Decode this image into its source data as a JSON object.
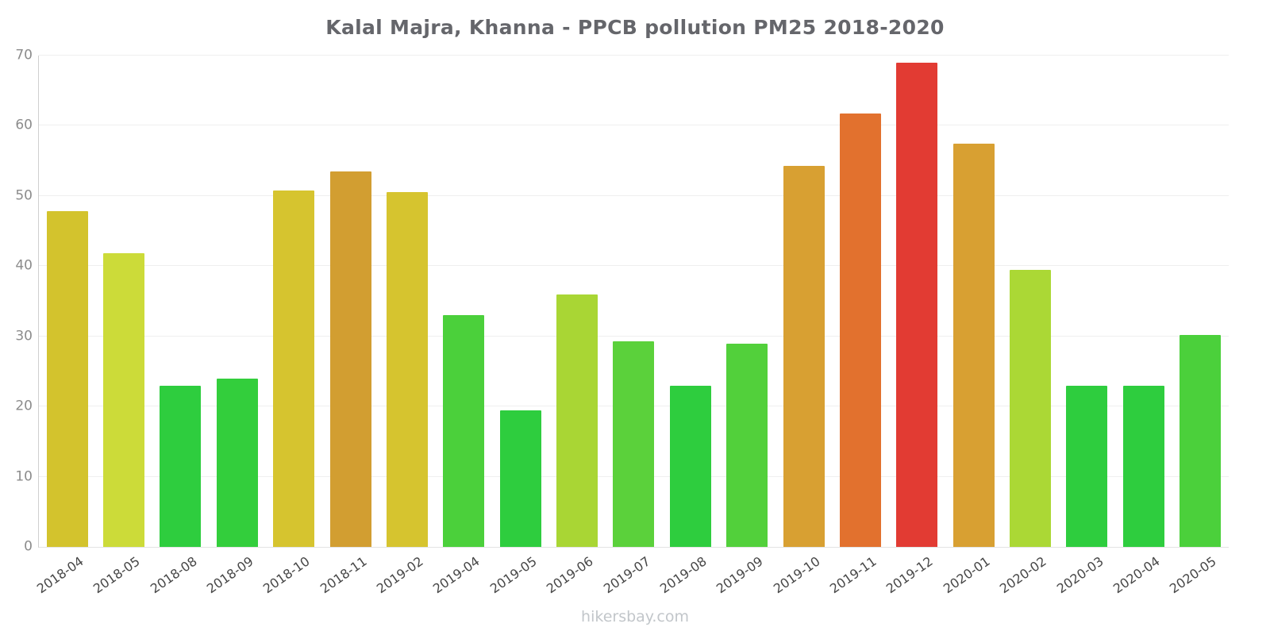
{
  "chart_data": {
    "type": "bar",
    "title": "Kalal Majra, Khanna - PPCB pollution PM25 2018-2020",
    "xlabel": "",
    "ylabel": "",
    "ylim": [
      0,
      70
    ],
    "yticks": [
      0,
      10,
      20,
      30,
      40,
      50,
      60,
      70
    ],
    "grid": true,
    "legend": "none",
    "categories": [
      "2018-04",
      "2018-05",
      "2018-08",
      "2018-09",
      "2018-10",
      "2018-11",
      "2019-02",
      "2019-04",
      "2019-05",
      "2019-06",
      "2019-07",
      "2019-08",
      "2019-09",
      "2019-10",
      "2019-11",
      "2019-12",
      "2020-01",
      "2020-02",
      "2020-03",
      "2020-04",
      "2020-05"
    ],
    "values": [
      47.8,
      41.8,
      23.0,
      24.0,
      50.8,
      53.5,
      50.5,
      33.0,
      19.5,
      36.0,
      29.3,
      23.0,
      29.0,
      54.3,
      61.8,
      69.0,
      57.5,
      39.5,
      23.0,
      23.0,
      30.2
    ],
    "colors": [
      "#d3c32d",
      "#ccdb39",
      "#2ecd3e",
      "#33ce3c",
      "#d6c42f",
      "#d29e31",
      "#d6c42f",
      "#4bd03b",
      "#2ecd3e",
      "#a9d634",
      "#5bd13b",
      "#2ecd3e",
      "#52d03b",
      "#d8a032",
      "#e2712e",
      "#e23b33",
      "#d8a032",
      "#abd835",
      "#2ecd3e",
      "#2ecd3e",
      "#4bd03b"
    ]
  },
  "footer": {
    "text": "hikersbay.com"
  }
}
